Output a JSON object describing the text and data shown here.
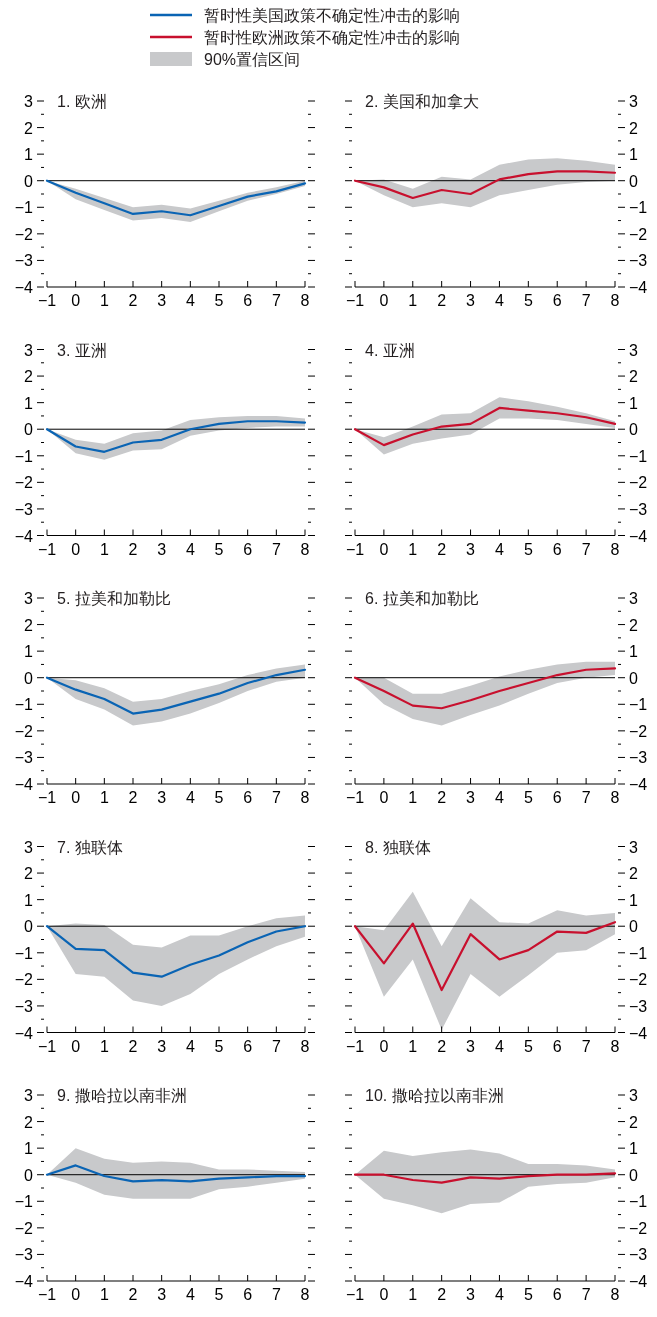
{
  "chart_data": [
    {
      "type": "line",
      "title": "1. 欧洲",
      "legend": "top",
      "annotations": [
        "90%置信区间"
      ],
      "x": [
        -1,
        0,
        1,
        2,
        3,
        4,
        5,
        6,
        7,
        8
      ],
      "xlim": [
        -1,
        8
      ],
      "xticks": [
        -1,
        0,
        1,
        2,
        3,
        4,
        5,
        6,
        7,
        8
      ],
      "ylim": [
        -4,
        3
      ],
      "yticks": [
        -4,
        {
          "value": -3.5,
          "label": null
        },
        -3,
        {
          "value": -2.5,
          "label": null
        },
        -2,
        {
          "value": -1.5,
          "label": null
        },
        -1,
        {
          "value": -0.5,
          "label": null
        },
        0,
        {
          "value": 0.5,
          "label": null
        },
        1,
        {
          "value": 1.5,
          "label": null
        },
        2,
        {
          "value": 2.5,
          "label": null
        },
        3
      ],
      "ref_lines": [
        {
          "axis": "y",
          "value": 0,
          "color": "#000000"
        }
      ],
      "series": [
        {
          "name": "暂时性美国政策不确定性冲击的影响",
          "color": "#0a64b4",
          "values": [
            0,
            -0.45,
            -0.85,
            -1.25,
            -1.15,
            -1.3,
            -0.95,
            -0.6,
            -0.4,
            -0.1
          ],
          "lower": [
            0,
            -0.7,
            -1.1,
            -1.5,
            -1.4,
            -1.55,
            -1.15,
            -0.75,
            -0.5,
            -0.2
          ],
          "upper": [
            0,
            -0.3,
            -0.65,
            -1.0,
            -0.9,
            -1.05,
            -0.75,
            -0.45,
            -0.25,
            0
          ]
        }
      ]
    },
    {
      "type": "line",
      "title": "2. 美国和加拿大",
      "legend": "top",
      "x": [
        -1,
        0,
        1,
        2,
        3,
        4,
        5,
        6,
        7,
        8
      ],
      "xlim": [
        -1,
        8
      ],
      "xticks": [
        -1,
        0,
        1,
        2,
        3,
        4,
        5,
        6,
        7,
        8
      ],
      "ylim": [
        -4,
        3
      ],
      "yticks": [
        -4,
        {
          "value": -3.5,
          "label": null
        },
        -3,
        {
          "value": -2.5,
          "label": null
        },
        -2,
        {
          "value": -1.5,
          "label": null
        },
        -1,
        {
          "value": -0.5,
          "label": null
        },
        0,
        {
          "value": 0.5,
          "label": null
        },
        1,
        {
          "value": 1.5,
          "label": null
        },
        2,
        {
          "value": 2.5,
          "label": null
        },
        3
      ],
      "ref_lines": [
        {
          "axis": "y",
          "value": 0,
          "color": "#000000"
        }
      ],
      "series": [
        {
          "name": "暂时性欧洲政策不确定性冲击的影响",
          "color": "#c8102e",
          "values": [
            0,
            -0.25,
            -0.65,
            -0.35,
            -0.5,
            0.05,
            0.25,
            0.35,
            0.35,
            0.3
          ],
          "lower": [
            0,
            -0.55,
            -1.0,
            -0.85,
            -1.0,
            -0.55,
            -0.35,
            -0.15,
            -0.05,
            0
          ],
          "upper": [
            0,
            0.05,
            -0.3,
            0.15,
            0.05,
            0.6,
            0.8,
            0.85,
            0.75,
            0.6
          ]
        }
      ]
    },
    {
      "type": "line",
      "title": "3. 亚洲",
      "x": [
        -1,
        0,
        1,
        2,
        3,
        4,
        5,
        6,
        7,
        8
      ],
      "xlim": [
        -1,
        8
      ],
      "xticks": [
        -1,
        0,
        1,
        2,
        3,
        4,
        5,
        6,
        7,
        8
      ],
      "ylim": [
        -4,
        3
      ],
      "yticks": [
        -4,
        {
          "value": -3.5,
          "label": null
        },
        -3,
        {
          "value": -2.5,
          "label": null
        },
        -2,
        {
          "value": -1.5,
          "label": null
        },
        -1,
        {
          "value": -0.5,
          "label": null
        },
        0,
        {
          "value": 0.5,
          "label": null
        },
        1,
        {
          "value": 1.5,
          "label": null
        },
        2,
        {
          "value": 2.5,
          "label": null
        },
        3
      ],
      "ref_lines": [
        {
          "axis": "y",
          "value": 0,
          "color": "#000000"
        }
      ],
      "series": [
        {
          "color": "#0a64b4",
          "values": [
            0,
            -0.65,
            -0.85,
            -0.5,
            -0.4,
            0,
            0.2,
            0.3,
            0.3,
            0.25
          ],
          "lower": [
            0,
            -0.9,
            -1.15,
            -0.8,
            -0.75,
            -0.25,
            -0.05,
            0.05,
            0.1,
            0.1
          ],
          "upper": [
            0,
            -0.4,
            -0.55,
            -0.15,
            -0.05,
            0.35,
            0.45,
            0.5,
            0.5,
            0.4
          ]
        }
      ]
    },
    {
      "type": "line",
      "title": "4. 亚洲",
      "x": [
        -1,
        0,
        1,
        2,
        3,
        4,
        5,
        6,
        7,
        8
      ],
      "xlim": [
        -1,
        8
      ],
      "xticks": [
        -1,
        0,
        1,
        2,
        3,
        4,
        5,
        6,
        7,
        8
      ],
      "ylim": [
        -4,
        3
      ],
      "yticks": [
        -4,
        {
          "value": -3.5,
          "label": null
        },
        -3,
        {
          "value": -2.5,
          "label": null
        },
        -2,
        {
          "value": -1.5,
          "label": null
        },
        -1,
        {
          "value": -0.5,
          "label": null
        },
        0,
        {
          "value": 0.5,
          "label": null
        },
        1,
        {
          "value": 1.5,
          "label": null
        },
        2,
        {
          "value": 2.5,
          "label": null
        },
        3
      ],
      "ref_lines": [
        {
          "axis": "y",
          "value": 0,
          "color": "#000000"
        }
      ],
      "series": [
        {
          "color": "#c8102e",
          "values": [
            0,
            -0.6,
            -0.2,
            0.1,
            0.2,
            0.8,
            0.7,
            0.6,
            0.45,
            0.2
          ],
          "lower": [
            0,
            -0.95,
            -0.55,
            -0.35,
            -0.2,
            0.4,
            0.4,
            0.35,
            0.2,
            0.05
          ],
          "upper": [
            0,
            -0.3,
            0.1,
            0.55,
            0.6,
            1.2,
            1.05,
            0.85,
            0.6,
            0.3
          ]
        }
      ]
    },
    {
      "type": "line",
      "title": "5. 拉美和加勒比",
      "x": [
        -1,
        0,
        1,
        2,
        3,
        4,
        5,
        6,
        7,
        8
      ],
      "xlim": [
        -1,
        8
      ],
      "xticks": [
        -1,
        0,
        1,
        2,
        3,
        4,
        5,
        6,
        7,
        8
      ],
      "ylim": [
        -4,
        3
      ],
      "yticks": [
        -4,
        {
          "value": -3.5,
          "label": null
        },
        -3,
        {
          "value": -2.5,
          "label": null
        },
        -2,
        {
          "value": -1.5,
          "label": null
        },
        -1,
        {
          "value": -0.5,
          "label": null
        },
        0,
        {
          "value": 0.5,
          "label": null
        },
        1,
        {
          "value": 1.5,
          "label": null
        },
        2,
        {
          "value": 2.5,
          "label": null
        },
        3
      ],
      "ref_lines": [
        {
          "axis": "y",
          "value": 0,
          "color": "#000000"
        }
      ],
      "series": [
        {
          "color": "#0a64b4",
          "values": [
            0,
            -0.45,
            -0.8,
            -1.35,
            -1.2,
            -0.9,
            -0.6,
            -0.2,
            0.1,
            0.3
          ],
          "lower": [
            0,
            -0.8,
            -1.2,
            -1.8,
            -1.65,
            -1.35,
            -0.95,
            -0.5,
            -0.15,
            0
          ],
          "upper": [
            0,
            -0.1,
            -0.4,
            -0.9,
            -0.8,
            -0.5,
            -0.25,
            0.1,
            0.35,
            0.5
          ]
        }
      ]
    },
    {
      "type": "line",
      "title": "6. 拉美和加勒比",
      "x": [
        -1,
        0,
        1,
        2,
        3,
        4,
        5,
        6,
        7,
        8
      ],
      "xlim": [
        -1,
        8
      ],
      "xticks": [
        -1,
        0,
        1,
        2,
        3,
        4,
        5,
        6,
        7,
        8
      ],
      "ylim": [
        -4,
        3
      ],
      "yticks": [
        -4,
        {
          "value": -3.5,
          "label": null
        },
        -3,
        {
          "value": -2.5,
          "label": null
        },
        -2,
        {
          "value": -1.5,
          "label": null
        },
        -1,
        {
          "value": -0.5,
          "label": null
        },
        0,
        {
          "value": 0.5,
          "label": null
        },
        1,
        {
          "value": 1.5,
          "label": null
        },
        2,
        {
          "value": 2.5,
          "label": null
        },
        3
      ],
      "ref_lines": [
        {
          "axis": "y",
          "value": 0,
          "color": "#000000"
        }
      ],
      "series": [
        {
          "color": "#c8102e",
          "values": [
            0,
            -0.5,
            -1.05,
            -1.15,
            -0.85,
            -0.5,
            -0.2,
            0.1,
            0.3,
            0.35
          ],
          "lower": [
            0,
            -1.0,
            -1.55,
            -1.8,
            -1.4,
            -1.05,
            -0.6,
            -0.2,
            0,
            0.1
          ],
          "upper": [
            0,
            0,
            -0.6,
            -0.6,
            -0.3,
            0.05,
            0.3,
            0.5,
            0.6,
            0.6
          ]
        }
      ]
    },
    {
      "type": "line",
      "title": "7. 独联体",
      "x": [
        -1,
        0,
        1,
        2,
        3,
        4,
        5,
        6,
        7,
        8
      ],
      "xlim": [
        -1,
        8
      ],
      "xticks": [
        -1,
        0,
        1,
        2,
        3,
        4,
        5,
        6,
        7,
        8
      ],
      "ylim": [
        -4,
        3
      ],
      "yticks": [
        -4,
        {
          "value": -3.5,
          "label": null
        },
        -3,
        {
          "value": -2.5,
          "label": null
        },
        -2,
        {
          "value": -1.5,
          "label": null
        },
        -1,
        {
          "value": -0.5,
          "label": null
        },
        0,
        {
          "value": 0.5,
          "label": null
        },
        1,
        {
          "value": 1.5,
          "label": null
        },
        2,
        {
          "value": 2.5,
          "label": null
        },
        3
      ],
      "ref_lines": [
        {
          "axis": "y",
          "value": 0,
          "color": "#000000"
        }
      ],
      "series": [
        {
          "color": "#0a64b4",
          "values": [
            0,
            -0.85,
            -0.9,
            -1.75,
            -1.9,
            -1.45,
            -1.1,
            -0.6,
            -0.2,
            0
          ],
          "lower": [
            0,
            -1.8,
            -1.9,
            -2.8,
            -3.0,
            -2.55,
            -1.8,
            -1.25,
            -0.75,
            -0.4
          ],
          "upper": [
            0,
            0.1,
            0.05,
            -0.7,
            -0.8,
            -0.35,
            -0.35,
            0,
            0.3,
            0.4
          ]
        }
      ]
    },
    {
      "type": "line",
      "title": "8. 独联体",
      "x": [
        -1,
        0,
        1,
        2,
        3,
        4,
        5,
        6,
        7,
        8
      ],
      "xlim": [
        -1,
        8
      ],
      "xticks": [
        -1,
        0,
        1,
        2,
        3,
        4,
        5,
        6,
        7,
        8
      ],
      "ylim": [
        -4,
        3
      ],
      "yticks": [
        -4,
        {
          "value": -3.5,
          "label": null
        },
        -3,
        {
          "value": -2.5,
          "label": null
        },
        -2,
        {
          "value": -1.5,
          "label": null
        },
        -1,
        {
          "value": -0.5,
          "label": null
        },
        0,
        {
          "value": 0.5,
          "label": null
        },
        1,
        {
          "value": 1.5,
          "label": null
        },
        2,
        {
          "value": 2.5,
          "label": null
        },
        3
      ],
      "ref_lines": [
        {
          "axis": "y",
          "value": 0,
          "color": "#000000"
        }
      ],
      "series": [
        {
          "color": "#c8102e",
          "values": [
            0,
            -1.4,
            0.1,
            -2.4,
            -0.3,
            -1.25,
            -0.9,
            -0.2,
            -0.25,
            0.15
          ],
          "lower": [
            0,
            -2.65,
            -1.25,
            -3.9,
            -1.8,
            -2.65,
            -1.85,
            -1.0,
            -0.9,
            -0.3
          ],
          "upper": [
            0,
            -0.15,
            1.3,
            -0.75,
            1.05,
            0.15,
            0.1,
            0.6,
            0.4,
            0.5
          ]
        }
      ]
    },
    {
      "type": "line",
      "title": "9. 撒哈拉以南非洲",
      "x": [
        -1,
        0,
        1,
        2,
        3,
        4,
        5,
        6,
        7,
        8
      ],
      "xlim": [
        -1,
        8
      ],
      "xticks": [
        -1,
        0,
        1,
        2,
        3,
        4,
        5,
        6,
        7,
        8
      ],
      "ylim": [
        -4,
        3
      ],
      "yticks": [
        -4,
        {
          "value": -3.5,
          "label": null
        },
        -3,
        {
          "value": -2.5,
          "label": null
        },
        -2,
        {
          "value": -1.5,
          "label": null
        },
        -1,
        {
          "value": -0.5,
          "label": null
        },
        0,
        {
          "value": 0.5,
          "label": null
        },
        1,
        {
          "value": 1.5,
          "label": null
        },
        2,
        {
          "value": 2.5,
          "label": null
        },
        3
      ],
      "ref_lines": [
        {
          "axis": "y",
          "value": 0,
          "color": "#000000"
        }
      ],
      "series": [
        {
          "color": "#0a64b4",
          "values": [
            0,
            0.35,
            -0.05,
            -0.25,
            -0.2,
            -0.25,
            -0.15,
            -0.1,
            -0.05,
            -0.05
          ],
          "lower": [
            0,
            -0.3,
            -0.75,
            -0.9,
            -0.9,
            -0.9,
            -0.55,
            -0.45,
            -0.3,
            -0.15
          ],
          "upper": [
            0,
            1.0,
            0.6,
            0.45,
            0.5,
            0.45,
            0.2,
            0.2,
            0.15,
            0.1
          ]
        }
      ]
    },
    {
      "type": "line",
      "title": "10. 撒哈拉以南非洲",
      "x": [
        -1,
        0,
        1,
        2,
        3,
        4,
        5,
        6,
        7,
        8
      ],
      "xlim": [
        -1,
        8
      ],
      "xticks": [
        -1,
        0,
        1,
        2,
        3,
        4,
        5,
        6,
        7,
        8
      ],
      "ylim": [
        -4,
        3
      ],
      "yticks": [
        -4,
        {
          "value": -3.5,
          "label": null
        },
        -3,
        {
          "value": -2.5,
          "label": null
        },
        -2,
        {
          "value": -1.5,
          "label": null
        },
        -1,
        {
          "value": -0.5,
          "label": null
        },
        0,
        {
          "value": 0.5,
          "label": null
        },
        1,
        {
          "value": 1.5,
          "label": null
        },
        2,
        {
          "value": 2.5,
          "label": null
        },
        3
      ],
      "ref_lines": [
        {
          "axis": "y",
          "value": 0,
          "color": "#000000"
        }
      ],
      "series": [
        {
          "color": "#c8102e",
          "values": [
            0,
            0,
            -0.2,
            -0.3,
            -0.1,
            -0.15,
            -0.05,
            0,
            0,
            0.05
          ],
          "lower": [
            0,
            -0.9,
            -1.15,
            -1.45,
            -1.1,
            -1.05,
            -0.45,
            -0.35,
            -0.3,
            -0.1
          ],
          "upper": [
            0,
            0.9,
            0.7,
            0.85,
            0.95,
            0.8,
            0.4,
            0.4,
            0.35,
            0.2
          ]
        }
      ]
    }
  ]
}
